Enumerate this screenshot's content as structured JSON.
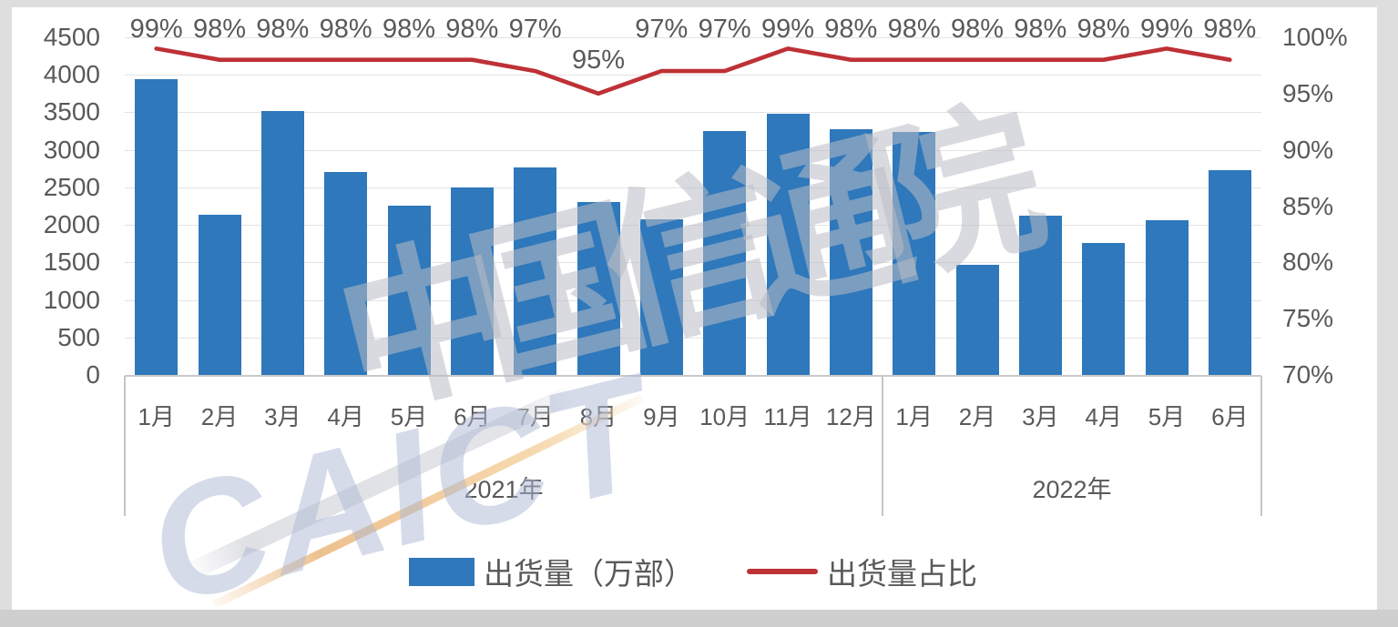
{
  "watermark": {
    "logo_text": "CAICT",
    "cn_text": "中国信通院"
  },
  "colors": {
    "bar": "#2E78BB",
    "line": "#BE3136",
    "text": "#595959",
    "grid": "#E3E3E3",
    "baseline": "#C9C9C9",
    "separator": "#C6C6C6",
    "frame_light": "#DEDEDE",
    "frame_dark": "#CFCFCF"
  },
  "chart_data": {
    "type": "bar",
    "subtype": "bar+line dual-axis combo",
    "title": "",
    "categories": [
      "1月",
      "2月",
      "3月",
      "4月",
      "5月",
      "6月",
      "7月",
      "8月",
      "9月",
      "10月",
      "11月",
      "12月",
      "1月",
      "2月",
      "3月",
      "4月",
      "5月",
      "6月"
    ],
    "category_groups": [
      {
        "label": "2021年",
        "count": 12
      },
      {
        "label": "2022年",
        "count": 6
      }
    ],
    "series": [
      {
        "name": "出货量（万部）",
        "type": "bar",
        "axis": "left",
        "values": [
          3940,
          2130,
          3520,
          2700,
          2260,
          2500,
          2770,
          2310,
          2080,
          3250,
          3480,
          3270,
          3240,
          1470,
          2120,
          1760,
          2060,
          2730
        ]
      },
      {
        "name": "出货量占比",
        "type": "line",
        "axis": "right",
        "values": [
          99,
          98,
          98,
          98,
          98,
          98,
          97,
          95,
          97,
          97,
          99,
          98,
          98,
          98,
          98,
          98,
          99,
          98
        ]
      }
    ],
    "data_labels": [
      "99%",
      "98%",
      "98%",
      "98%",
      "98%",
      "98%",
      "97%",
      "95%",
      "97%",
      "97%",
      "99%",
      "98%",
      "98%",
      "98%",
      "98%",
      "98%",
      "99%",
      "98%"
    ],
    "y_axis_left": {
      "min": 0,
      "max": 4500,
      "step": 500,
      "tick_labels": [
        "4500",
        "4000",
        "3500",
        "3000",
        "2500",
        "2000",
        "1500",
        "1000",
        "500",
        "0"
      ]
    },
    "y_axis_right": {
      "min": 70,
      "max": 100,
      "step": 5,
      "tick_labels": [
        "100%",
        "95%",
        "90%",
        "85%",
        "80%",
        "75%",
        "70%"
      ]
    },
    "grid": true,
    "legend_position": "bottom",
    "legend": [
      {
        "marker": "bar",
        "label": "出货量（万部）"
      },
      {
        "marker": "line",
        "label": "出货量占比"
      }
    ]
  }
}
